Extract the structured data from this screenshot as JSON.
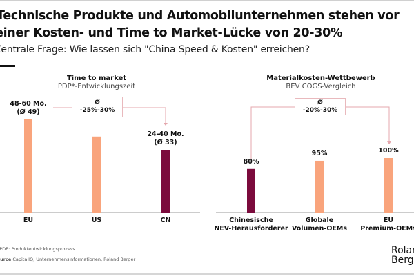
{
  "header": {
    "title_line1": "Technische Produkte und Automobilunternehmen stehen vor",
    "title_line2": "einer Kosten- und Time to Market-Lücke von 20-30%",
    "subtitle": "Zentrale Frage: Wie lassen sich \"China Speed & Kosten\" erreichen?"
  },
  "colors": {
    "orange": "#F9A47C",
    "maroon": "#7B0B3C",
    "box_border": "#E9B9BD"
  },
  "chart_data": [
    {
      "type": "bar",
      "title": "Time to market",
      "subtitle": "PDP*-Entwicklungszeit",
      "categories": [
        "EU",
        "US",
        "CN"
      ],
      "values": [
        49,
        40,
        33
      ],
      "data_labels": [
        "48-60 Mo.\n(Ø 49)",
        "",
        "24-40 Mo.\n(Ø 33)"
      ],
      "bar_colors": [
        "#F9A47C",
        "#F9A47C",
        "#7B0B3C"
      ],
      "annotation": {
        "line1": "Ø",
        "line2": "-25%-30%",
        "from": "EU",
        "to": "CN"
      },
      "ylim": [
        0,
        55
      ],
      "grid": false
    },
    {
      "type": "bar",
      "title": "Materialkosten-Wettbewerb",
      "subtitle": "BEV COGS-Vergleich",
      "categories": [
        "Chinesische\nNEV-Herausforderer",
        "Globale\nVolumen-OEMs",
        "EU\nPremium-OEMs"
      ],
      "values": [
        80,
        95,
        100
      ],
      "data_labels": [
        "80%",
        "95%",
        "100%"
      ],
      "bar_colors": [
        "#7B0B3C",
        "#F9A47C",
        "#F9A47C"
      ],
      "annotation": {
        "line1": "Ø",
        "line2": "-20%-30%",
        "from": "Chinesische NEV-Herausforderer",
        "to": "EU Premium-OEMs"
      },
      "ylim": [
        0,
        125
      ],
      "grid": false
    }
  ],
  "footer": {
    "footnote": "*PDP: Produktentwicklungsprozess",
    "source_label": "Source",
    "source_text": "CapitalIQ, Unternehmensinformationen, Roland Berger",
    "logo_line1": "Roland",
    "logo_line2": "Berger"
  }
}
